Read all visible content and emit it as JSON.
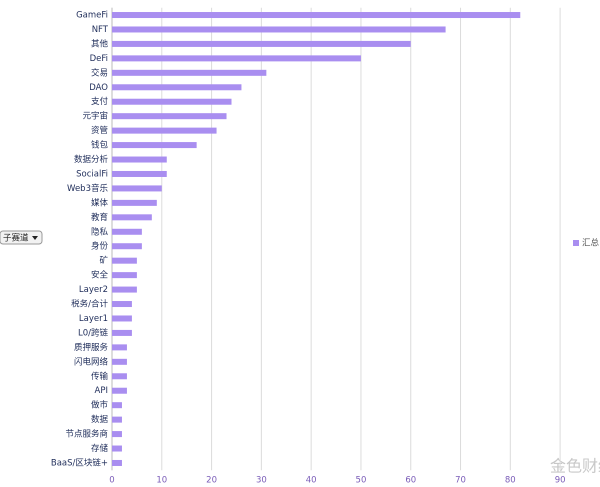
{
  "chart_data": {
    "type": "bar",
    "orientation": "horizontal",
    "categories": [
      "GameFi",
      "NFT",
      "其他",
      "DeFi",
      "交易",
      "DAO",
      "支付",
      "元宇宙",
      "资管",
      "钱包",
      "数据分析",
      "SocialFi",
      "Web3音乐",
      "媒体",
      "教育",
      "隐私",
      "身份",
      "矿",
      "安全",
      "Layer2",
      "税务/合计",
      "Layer1",
      "L0/跨链",
      "质押服务",
      "闪电网络",
      "传输",
      "API",
      "做市",
      "数据",
      "节点服务商",
      "存储",
      "BaaS/区块链+"
    ],
    "series": [
      {
        "name": "汇总",
        "color": "#a98ef0",
        "values": [
          82,
          67,
          60,
          50,
          31,
          26,
          24,
          23,
          21,
          17,
          11,
          11,
          10,
          9,
          8,
          6,
          6,
          5,
          5,
          5,
          4,
          4,
          4,
          3,
          3,
          3,
          3,
          2,
          2,
          2,
          2,
          2
        ]
      }
    ],
    "xlim": [
      0,
      95
    ],
    "xticks": [
      0,
      10,
      20,
      30,
      40,
      50,
      60,
      70,
      80,
      90
    ],
    "grid": true,
    "legend": "right",
    "filter_label": "子赛道",
    "watermark": "金色财经"
  }
}
